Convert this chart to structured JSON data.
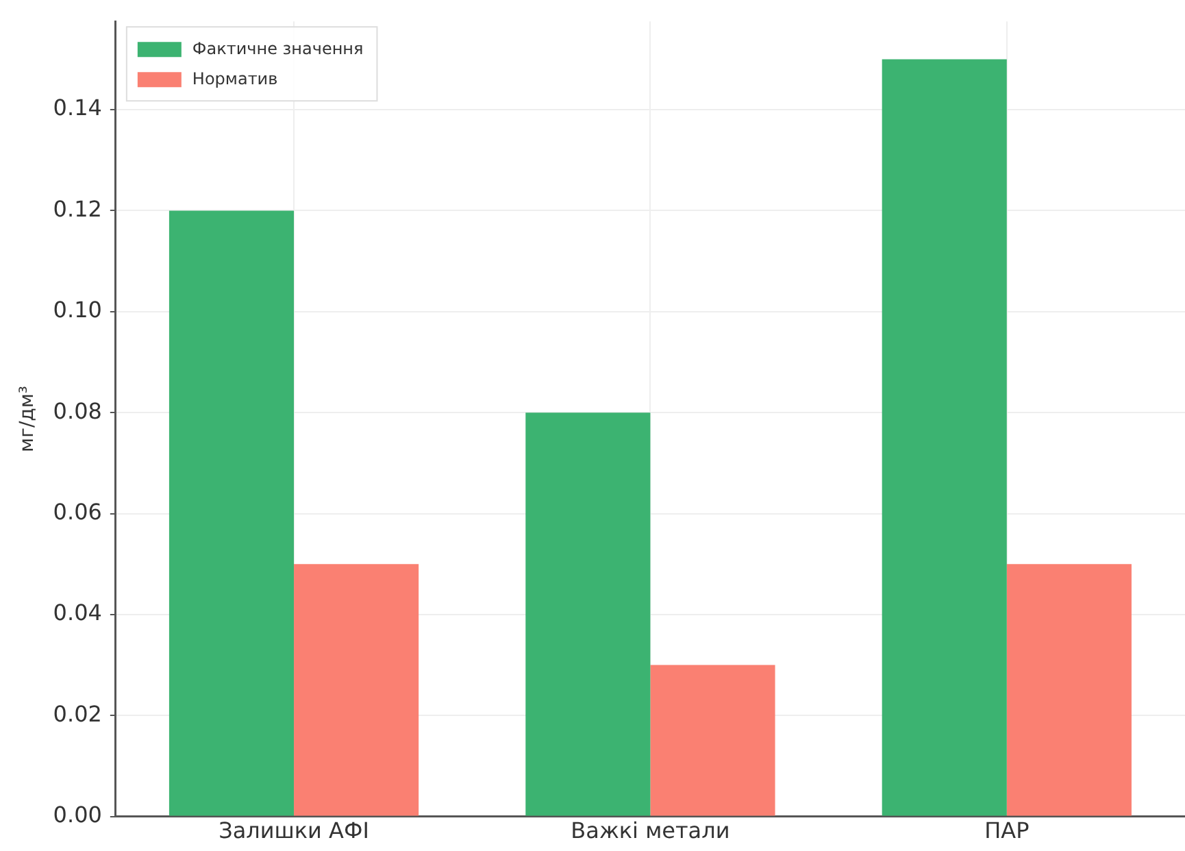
{
  "chart_data": {
    "type": "bar",
    "ylabel": "мг/дм³",
    "categories": [
      "Залишки АФІ",
      "Важкі метали",
      "ПАР"
    ],
    "series": [
      {
        "name": "Фактичне значення",
        "color": "#3cb371",
        "values": [
          0.12,
          0.08,
          0.15
        ]
      },
      {
        "name": "Норматив",
        "color": "#fa8072",
        "values": [
          0.05,
          0.03,
          0.05
        ]
      }
    ],
    "ylim": [
      0,
      0.1575
    ],
    "yticks": [
      {
        "value": 0,
        "label": "0.00"
      },
      0.02,
      0.04,
      0.06,
      0.08,
      {
        "value": 0.1,
        "label": "0.10"
      },
      0.12,
      0.14
    ],
    "grid": true,
    "legend": "top left"
  }
}
